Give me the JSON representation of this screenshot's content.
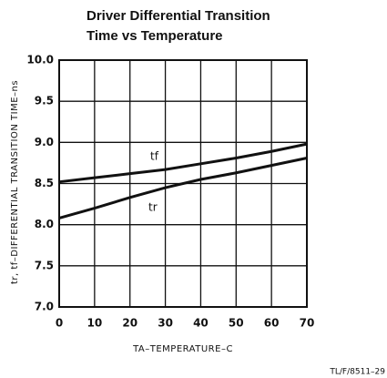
{
  "chart_data": {
    "type": "line",
    "title": [
      "Driver Differential Transition",
      "Time vs Temperature"
    ],
    "x_label": "TA–TEMPERATURE–C",
    "y_label": "tr, tf–DIFFERENTIAL TRANSITION TIME–ns",
    "footnote": "TL/F/8511–29",
    "x": [
      0,
      10,
      20,
      30,
      40,
      50,
      60,
      70
    ],
    "series": [
      {
        "name": "tf",
        "color": "#111111",
        "values": [
          8.52,
          8.57,
          8.62,
          8.67,
          8.74,
          8.81,
          8.89,
          8.98
        ]
      },
      {
        "name": "tr",
        "color": "#111111",
        "values": [
          8.08,
          8.2,
          8.33,
          8.45,
          8.55,
          8.63,
          8.72,
          8.81
        ]
      }
    ],
    "xlim": [
      0,
      70
    ],
    "xticks": [
      0,
      10,
      20,
      30,
      40,
      50,
      60,
      70
    ],
    "ylim": [
      7,
      10
    ],
    "yticks": [
      {
        "value": 7,
        "label": "7.0"
      },
      7.5,
      {
        "value": 8,
        "label": "8.0"
      },
      8.5,
      {
        "value": 9,
        "label": "9.0"
      },
      9.5,
      {
        "value": 10,
        "label": "10.0"
      }
    ],
    "grid": true
  }
}
